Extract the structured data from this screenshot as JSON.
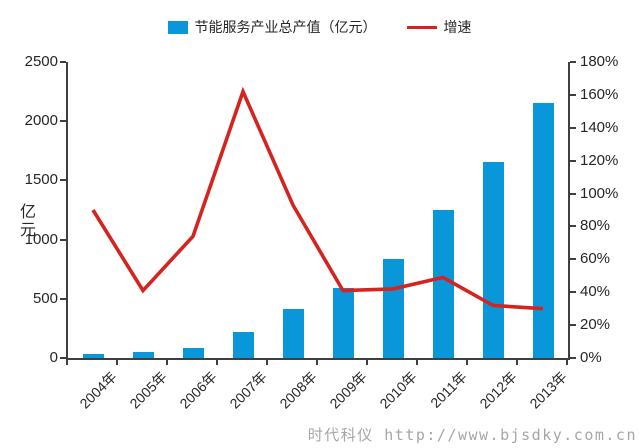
{
  "legend": {
    "bar_label": "节能服务产业总产值（亿元）",
    "line_label": "增速"
  },
  "left_axis": {
    "title": "亿元",
    "tick_labels": [
      "0",
      "500",
      "1000",
      "1500",
      "2000",
      "2500"
    ],
    "tick_values": [
      0,
      500,
      1000,
      1500,
      2000,
      2500
    ],
    "max": 2500
  },
  "right_axis": {
    "tick_labels": [
      "0%",
      "20%",
      "40%",
      "60%",
      "80%",
      "100%",
      "120%",
      "140%",
      "160%",
      "180%"
    ],
    "tick_values": [
      0,
      20,
      40,
      60,
      80,
      100,
      120,
      140,
      160,
      180
    ],
    "max": 180
  },
  "watermark": "时代科仪 http://www.bjsdky.com.cn",
  "colors": {
    "bar": "#0a97d9",
    "line": "#d5231f",
    "axis": "#3f3f3f",
    "text": "#262626",
    "watermark": "#a6a6a6"
  },
  "chart_data": {
    "type": "bar",
    "subtype": "bar+line combo",
    "categories": [
      "2004年",
      "2005年",
      "2006年",
      "2007年",
      "2008年",
      "2009年",
      "2010年",
      "2011年",
      "2012年",
      "2013年"
    ],
    "series": [
      {
        "name": "节能服务产业总产值（亿元）",
        "type": "bar",
        "axis": "left",
        "values": [
          33.6,
          47.3,
          82.5,
          216.2,
          417.3,
          587.7,
          836.3,
          1250.3,
          1653.4,
          2155.6
        ]
      },
      {
        "name": "增速",
        "type": "line",
        "axis": "right",
        "unit": "percent",
        "values": [
          90,
          41,
          74,
          162,
          93,
          41,
          42,
          49,
          32,
          30
        ]
      }
    ],
    "title": "",
    "xlabel": "",
    "ylabel_left": "亿元",
    "ylabel_right": "",
    "left_ylim": [
      0,
      2500
    ],
    "right_ylim_percent": [
      0,
      180
    ],
    "grid": false,
    "legend_position": "top-center"
  }
}
